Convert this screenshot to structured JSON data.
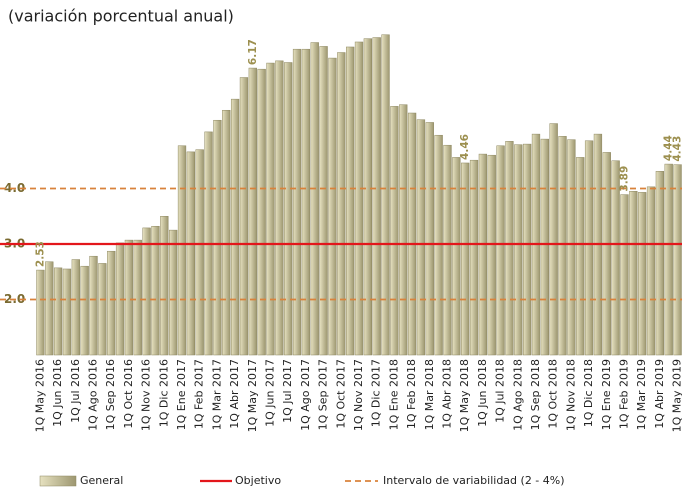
{
  "chart_data": {
    "type": "bar",
    "title": "(variación porcentual anual)",
    "categories": [
      "1Q May 2016",
      null,
      "1Q Jun 2016",
      null,
      "1Q Jul 2016",
      null,
      "1Q Ago 2016",
      null,
      "1Q Sep 2016",
      null,
      "1Q Oct 2016",
      null,
      "1Q Nov 2016",
      null,
      "1Q Dic 2016",
      null,
      "1Q Ene 2017",
      null,
      "1Q Feb 2017",
      null,
      "1Q Mar 2017",
      null,
      "1Q Abr 2017",
      null,
      "1Q May 2017",
      null,
      "1Q Jun 2017",
      null,
      "1Q Jul 2017",
      null,
      "1Q Ago 2017",
      null,
      "1Q Sep 2017",
      null,
      "1Q Oct 2017",
      null,
      "1Q Nov 2017",
      null,
      "1Q Dic 2017",
      null,
      "1Q Ene 2018",
      null,
      "1Q Feb 2018",
      null,
      "1Q Mar 2018",
      null,
      "1Q Abr 2018",
      null,
      "1Q May 2018",
      null,
      "1Q Jun 2018",
      null,
      "1Q Jul 2018",
      null,
      "1Q Ago 2018",
      null,
      "1Q Sep 2018",
      null,
      "1Q Oct 2018",
      null,
      "1Q Nov 2018",
      null,
      "1Q Dic 2018",
      null,
      "1Q Ene 2019",
      null,
      "1Q Feb 2019",
      null,
      "1Q Mar 2019",
      null,
      "1Q Abr 2019",
      null,
      "1Q May 2019"
    ],
    "series": [
      {
        "name": "General",
        "color": "#c9c39b",
        "values": [
          2.53,
          2.68,
          2.57,
          2.55,
          2.72,
          2.6,
          2.78,
          2.65,
          2.87,
          3.02,
          3.07,
          3.07,
          3.29,
          3.32,
          3.5,
          3.25,
          4.77,
          4.66,
          4.7,
          5.02,
          5.23,
          5.41,
          5.61,
          6.0,
          6.17,
          6.15,
          6.26,
          6.3,
          6.27,
          6.51,
          6.51,
          6.63,
          6.56,
          6.35,
          6.45,
          6.55,
          6.64,
          6.7,
          6.72,
          6.77,
          5.48,
          5.51,
          5.36,
          5.24,
          5.19,
          4.96,
          4.78,
          4.56,
          4.46,
          4.51,
          4.62,
          4.6,
          4.77,
          4.85,
          4.79,
          4.8,
          4.98,
          4.89,
          5.17,
          4.94,
          4.88,
          4.56,
          4.86,
          4.98,
          4.65,
          4.5,
          3.89,
          3.95,
          3.93,
          4.03,
          4.31,
          4.44,
          4.43
        ],
        "value_labels": [
          "2.53",
          null,
          null,
          null,
          null,
          null,
          null,
          null,
          null,
          null,
          null,
          null,
          null,
          null,
          null,
          null,
          null,
          null,
          null,
          null,
          null,
          null,
          null,
          null,
          "6.17",
          null,
          null,
          null,
          null,
          null,
          null,
          null,
          null,
          null,
          null,
          null,
          null,
          null,
          null,
          null,
          null,
          null,
          null,
          null,
          null,
          null,
          null,
          null,
          "4.46",
          null,
          null,
          null,
          null,
          null,
          null,
          null,
          null,
          null,
          null,
          null,
          null,
          null,
          null,
          null,
          null,
          null,
          "3.89",
          null,
          null,
          null,
          null,
          "4.44",
          "4.43"
        ]
      }
    ],
    "reference_lines": [
      {
        "name": "Objetivo",
        "value": 3,
        "color": "#e3161b",
        "style": "solid"
      },
      {
        "name": "Intervalo de variabilidad (2 - 4%)",
        "values": [
          2,
          4
        ],
        "color": "#d9823b",
        "style": "dashed"
      }
    ],
    "ylim": [
      1,
      7
    ],
    "yticks": [
      {
        "value": 2,
        "label": "2.0"
      },
      {
        "value": 3,
        "label": "3.0"
      },
      {
        "value": 4,
        "label": "4.0"
      }
    ]
  }
}
